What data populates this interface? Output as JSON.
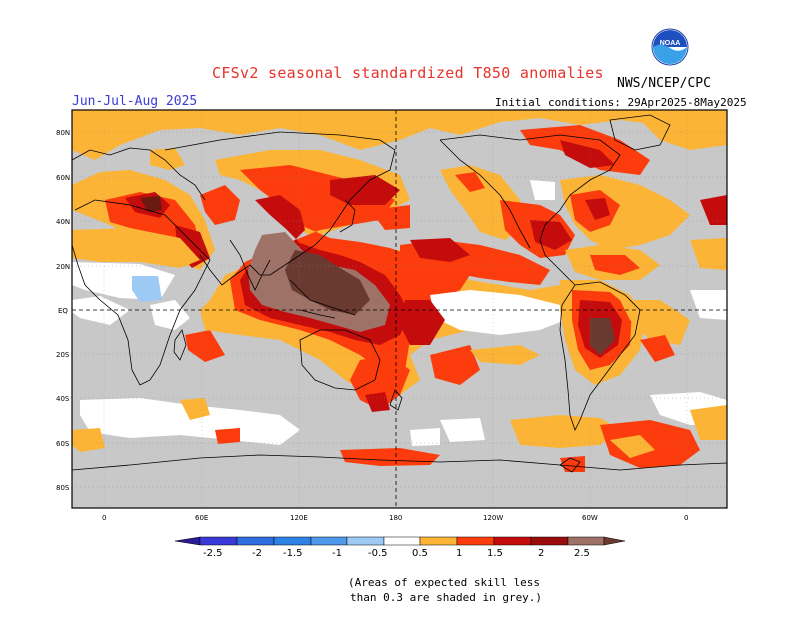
{
  "header": {
    "title": "CFSv2 seasonal standardized T850 anomalies",
    "season": "Jun-Jul-Aug 2025",
    "initial_conditions": "Initial conditions: 29Apr2025-8May2025",
    "agency": "NWS/NCEP/CPC",
    "logo_text": "NOAA"
  },
  "map": {
    "lat_labels": [
      "80N",
      "60N",
      "40N",
      "20N",
      "EQ",
      "20S",
      "40S",
      "60S",
      "80S"
    ],
    "lon_labels": [
      "0",
      "60E",
      "120E",
      "180",
      "120W",
      "60W",
      "0"
    ],
    "background_grey": "#c8c8c8",
    "reference_lines": [
      "Equator",
      "180 meridian"
    ]
  },
  "colorbar": {
    "tick_labels": [
      "-2.5",
      "-2",
      "-1.5",
      "-1",
      "-0.5",
      "0.5",
      "1",
      "1.5",
      "2",
      "2.5"
    ],
    "colors": [
      "#2a1a9a",
      "#3a3ad8",
      "#2e6ee0",
      "#4d98ea",
      "#9ccaf5",
      "#ffffff",
      "#fbb436",
      "#fc3c0c",
      "#c40c0c",
      "#9a0c0c",
      "#9e7266",
      "#6a3a30"
    ]
  },
  "notes": {
    "line1": "(Areas of expected skill less",
    "line2": "than 0.3 are shaded in grey.)"
  }
}
